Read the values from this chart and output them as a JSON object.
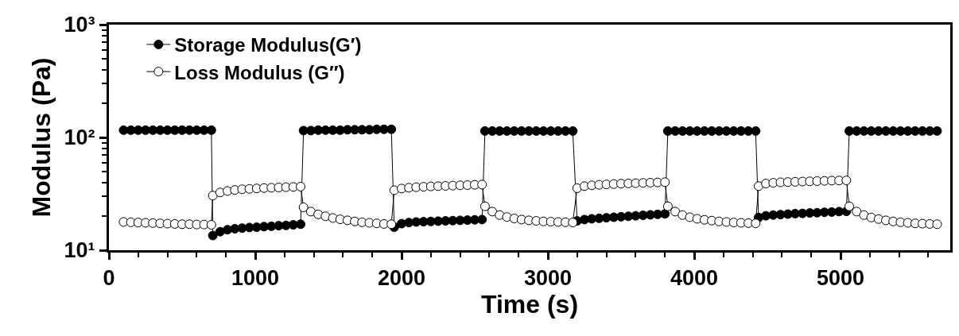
{
  "chart_data": {
    "type": "line",
    "xlabel": "Time (s)",
    "ylabel": "Modulus (Pa)",
    "x": [
      100,
      150,
      200,
      250,
      300,
      350,
      400,
      450,
      500,
      550,
      600,
      650,
      700,
      710,
      760,
      810,
      860,
      910,
      960,
      1010,
      1060,
      1110,
      1160,
      1210,
      1260,
      1310,
      1330,
      1380,
      1430,
      1480,
      1530,
      1580,
      1630,
      1680,
      1730,
      1780,
      1830,
      1880,
      1930,
      1950,
      2000,
      2050,
      2100,
      2150,
      2200,
      2250,
      2300,
      2350,
      2400,
      2450,
      2500,
      2550,
      2570,
      2620,
      2670,
      2720,
      2770,
      2820,
      2870,
      2920,
      2970,
      3020,
      3070,
      3120,
      3170,
      3200,
      3250,
      3300,
      3350,
      3400,
      3450,
      3500,
      3550,
      3600,
      3650,
      3700,
      3750,
      3800,
      3820,
      3870,
      3920,
      3970,
      4020,
      4070,
      4120,
      4170,
      4220,
      4270,
      4320,
      4370,
      4420,
      4440,
      4490,
      4540,
      4590,
      4640,
      4690,
      4740,
      4790,
      4840,
      4890,
      4940,
      4990,
      5040,
      5060,
      5110,
      5160,
      5210,
      5260,
      5310,
      5360,
      5410,
      5460,
      5510,
      5560,
      5610,
      5660
    ],
    "series": [
      {
        "name": "Storage Modulus(G′)",
        "color": "#000000",
        "values": [
          116,
          116,
          116,
          116,
          116,
          116,
          116,
          116,
          116,
          116,
          116,
          116,
          116,
          13.5,
          14.6,
          15.2,
          15.5,
          15.7,
          15.9,
          16.0,
          16.2,
          16.3,
          16.5,
          16.6,
          16.8,
          17.0,
          115,
          115,
          116,
          116,
          116,
          116,
          117,
          117,
          117,
          117,
          118,
          118,
          118,
          16.0,
          17.2,
          17.6,
          17.8,
          17.9,
          18.0,
          18.1,
          18.2,
          18.3,
          18.4,
          18.5,
          18.6,
          18.7,
          114,
          114,
          114,
          114,
          114,
          114,
          114,
          114,
          114,
          114,
          114,
          114,
          114,
          18.2,
          18.7,
          19.0,
          19.2,
          19.4,
          19.6,
          19.8,
          20.0,
          20.2,
          20.4,
          20.6,
          20.8,
          21.0,
          114,
          114,
          114,
          114,
          114,
          114,
          114,
          114,
          114,
          114,
          114,
          114,
          114,
          19.5,
          20.2,
          20.5,
          20.7,
          20.9,
          21.1,
          21.2,
          21.4,
          21.5,
          21.7,
          21.8,
          22.0,
          22.1,
          114,
          114,
          114,
          114,
          114,
          114,
          114,
          114,
          114,
          114,
          114,
          114,
          114
        ]
      },
      {
        "name": "Loss Modulus (G″)",
        "color": "#ffffff",
        "values": [
          17.8,
          17.7,
          17.6,
          17.5,
          17.4,
          17.3,
          17.2,
          17.1,
          17.0,
          17.0,
          16.9,
          16.9,
          16.8,
          30.5,
          32.5,
          33.5,
          34.2,
          34.7,
          35.0,
          35.3,
          35.6,
          35.8,
          36.0,
          36.2,
          36.4,
          36.6,
          24,
          22,
          20.8,
          20,
          19.3,
          18.8,
          18.4,
          18.0,
          17.7,
          17.5,
          17.3,
          17.1,
          17.0,
          34,
          35.2,
          35.8,
          36.2,
          36.5,
          36.8,
          37.0,
          37.2,
          37.4,
          37.6,
          37.8,
          38.0,
          38.2,
          24.5,
          22,
          20.5,
          19.7,
          19.1,
          18.7,
          18.4,
          18.2,
          18.0,
          17.9,
          17.8,
          17.7,
          17.6,
          35.5,
          37,
          37.6,
          38,
          38.3,
          38.6,
          38.9,
          39.1,
          39.3,
          39.5,
          39.7,
          39.9,
          40.1,
          24.5,
          22,
          20.5,
          19.6,
          19,
          18.6,
          18.3,
          18.0,
          17.8,
          17.6,
          17.5,
          17.4,
          17.3,
          37,
          39,
          39.6,
          40,
          40.2,
          40.4,
          40.6,
          40.8,
          41,
          41.2,
          41.4,
          41.5,
          41.6,
          24.5,
          22,
          20.5,
          19.5,
          18.9,
          18.4,
          18.0,
          17.7,
          17.5,
          17.3,
          17.2,
          17.1,
          17.0
        ]
      }
    ],
    "log": "y",
    "marker": "circle",
    "line_style": "solid",
    "legend": "top left",
    "xlim": [
      0,
      5750
    ],
    "xticks": [
      0,
      {
        "value": 200,
        "label": null
      },
      {
        "value": 400,
        "label": null
      },
      {
        "value": 600,
        "label": null
      },
      {
        "value": 800,
        "label": null
      },
      1000,
      {
        "value": 1200,
        "label": null
      },
      {
        "value": 1400,
        "label": null
      },
      {
        "value": 1600,
        "label": null
      },
      {
        "value": 1800,
        "label": null
      },
      2000,
      {
        "value": 2200,
        "label": null
      },
      {
        "value": 2400,
        "label": null
      },
      {
        "value": 2600,
        "label": null
      },
      {
        "value": 2800,
        "label": null
      },
      3000,
      {
        "value": 3200,
        "label": null
      },
      {
        "value": 3400,
        "label": null
      },
      {
        "value": 3600,
        "label": null
      },
      {
        "value": 3800,
        "label": null
      },
      4000,
      {
        "value": 4200,
        "label": null
      },
      {
        "value": 4400,
        "label": null
      },
      {
        "value": 4600,
        "label": null
      },
      {
        "value": 4800,
        "label": null
      },
      5000,
      {
        "value": 5200,
        "label": null
      },
      {
        "value": 5400,
        "label": null
      },
      {
        "value": 5600,
        "label": null
      }
    ],
    "ylim": [
      10,
      1000
    ],
    "yticks": [
      {
        "value": 10,
        "label": "10¹"
      },
      {
        "value": 20,
        "label": null
      },
      {
        "value": 30,
        "label": null
      },
      {
        "value": 40,
        "label": null
      },
      {
        "value": 50,
        "label": null
      },
      {
        "value": 60,
        "label": null
      },
      {
        "value": 70,
        "label": null
      },
      {
        "value": 80,
        "label": null
      },
      {
        "value": 90,
        "label": null
      },
      {
        "value": 100,
        "label": "10²"
      },
      {
        "value": 200,
        "label": null
      },
      {
        "value": 300,
        "label": null
      },
      {
        "value": 400,
        "label": null
      },
      {
        "value": 500,
        "label": null
      },
      {
        "value": 600,
        "label": null
      },
      {
        "value": 700,
        "label": null
      },
      {
        "value": 800,
        "label": null
      },
      {
        "value": 900,
        "label": null
      },
      {
        "value": 1000,
        "label": "10³"
      }
    ]
  }
}
